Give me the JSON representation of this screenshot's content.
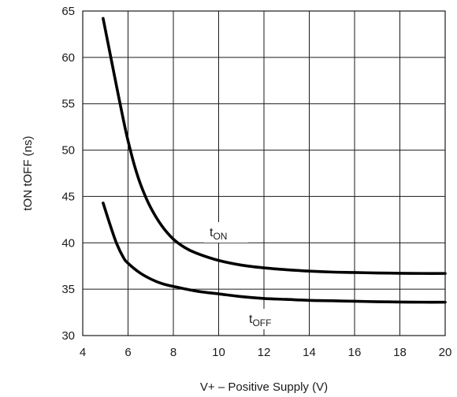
{
  "chart_data": {
    "type": "line",
    "title": "",
    "xlabel": "V+ – Positive Supply (V)",
    "ylabel": "tON  tOFF (ns)",
    "xlim": [
      4,
      20
    ],
    "ylim": [
      30,
      65
    ],
    "xticks": [
      4,
      6,
      8,
      10,
      12,
      14,
      16,
      18,
      20
    ],
    "yticks": [
      30,
      35,
      40,
      45,
      50,
      55,
      60,
      65
    ],
    "grid": true,
    "legend": "none",
    "series": [
      {
        "name": "tON",
        "label_main": "t",
        "label_sub": "ON",
        "x": [
          4.9,
          5.2,
          5.5,
          5.8,
          6.0,
          6.3,
          6.6,
          7.0,
          7.5,
          8.0,
          8.5,
          9.0,
          10.0,
          11.0,
          12.0,
          13.0,
          14.0,
          15.0,
          16.0,
          17.0,
          18.0,
          19.0,
          20.0
        ],
        "y": [
          64.2,
          60.5,
          56.8,
          53.2,
          51.0,
          48.2,
          46.0,
          43.8,
          41.8,
          40.4,
          39.5,
          38.9,
          38.1,
          37.6,
          37.3,
          37.1,
          36.95,
          36.85,
          36.8,
          36.75,
          36.72,
          36.7,
          36.7
        ]
      },
      {
        "name": "tOFF",
        "label_main": "t",
        "label_sub": "OFF",
        "x": [
          4.9,
          5.2,
          5.5,
          5.8,
          6.0,
          6.5,
          7.0,
          7.5,
          8.0,
          9.0,
          10.0,
          11.0,
          12.0,
          13.0,
          14.0,
          15.0,
          16.0,
          17.0,
          18.0,
          19.0,
          20.0
        ],
        "y": [
          44.3,
          42.0,
          39.9,
          38.4,
          37.8,
          36.8,
          36.1,
          35.6,
          35.3,
          34.8,
          34.5,
          34.2,
          34.0,
          33.9,
          33.8,
          33.75,
          33.7,
          33.65,
          33.62,
          33.6,
          33.6
        ]
      }
    ]
  }
}
